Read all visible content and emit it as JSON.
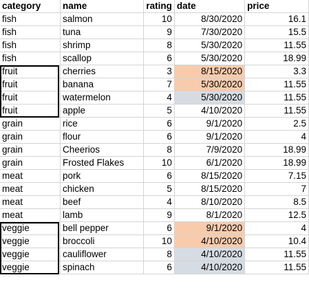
{
  "headers": [
    "category",
    "name",
    "rating",
    "date",
    "price"
  ],
  "rows": [
    {
      "category": "fish",
      "name": "salmon",
      "rating": "10",
      "date": "8/30/2020",
      "price": "16.1",
      "date_highlight": ""
    },
    {
      "category": "fish",
      "name": "tuna",
      "rating": "9",
      "date": "7/30/2020",
      "price": "15.5",
      "date_highlight": ""
    },
    {
      "category": "fish",
      "name": "shrimp",
      "rating": "8",
      "date": "5/30/2020",
      "price": "11.55",
      "date_highlight": ""
    },
    {
      "category": "fish",
      "name": "scallop",
      "rating": "6",
      "date": "5/30/2020",
      "price": "18.99",
      "date_highlight": ""
    },
    {
      "category": "fruit",
      "name": "cherries",
      "rating": "3",
      "date": "8/15/2020",
      "price": "3.3",
      "date_highlight": "orange"
    },
    {
      "category": "fruit",
      "name": "banana",
      "rating": "7",
      "date": "5/30/2020",
      "price": "11.55",
      "date_highlight": "orange"
    },
    {
      "category": "fruit",
      "name": "watermelon",
      "rating": "4",
      "date": "5/30/2020",
      "price": "11.55",
      "date_highlight": "blue"
    },
    {
      "category": "fruit",
      "name": "apple",
      "rating": "5",
      "date": "4/10/2020",
      "price": "11.55",
      "date_highlight": ""
    },
    {
      "category": "grain",
      "name": "rice",
      "rating": "6",
      "date": "9/1/2020",
      "price": "2.5",
      "date_highlight": ""
    },
    {
      "category": "grain",
      "name": "flour",
      "rating": "6",
      "date": "9/1/2020",
      "price": "4",
      "date_highlight": ""
    },
    {
      "category": "grain",
      "name": "Cheerios",
      "rating": "8",
      "date": "7/9/2020",
      "price": "18.99",
      "date_highlight": ""
    },
    {
      "category": "grain",
      "name": "Frosted Flakes",
      "rating": "10",
      "date": "6/1/2020",
      "price": "18.99",
      "date_highlight": ""
    },
    {
      "category": "meat",
      "name": "pork",
      "rating": "6",
      "date": "8/15/2020",
      "price": "7.15",
      "date_highlight": ""
    },
    {
      "category": "meat",
      "name": "chicken",
      "rating": "5",
      "date": "8/15/2020",
      "price": "7",
      "date_highlight": ""
    },
    {
      "category": "meat",
      "name": "beef",
      "rating": "4",
      "date": "8/10/2020",
      "price": "8.5",
      "date_highlight": ""
    },
    {
      "category": "meat",
      "name": "lamb",
      "rating": "9",
      "date": "8/1/2020",
      "price": "12.5",
      "date_highlight": ""
    },
    {
      "category": "veggie",
      "name": "bell pepper",
      "rating": "6",
      "date": "9/1/2020",
      "price": "4",
      "date_highlight": "orange"
    },
    {
      "category": "veggie",
      "name": "broccoli",
      "rating": "10",
      "date": "4/10/2020",
      "price": "10.4",
      "date_highlight": "orange"
    },
    {
      "category": "veggie",
      "name": "cauliflower",
      "rating": "8",
      "date": "4/10/2020",
      "price": "11.55",
      "date_highlight": "blue"
    },
    {
      "category": "veggie",
      "name": "spinach",
      "rating": "6",
      "date": "4/10/2020",
      "price": "11.55",
      "date_highlight": "blue"
    }
  ],
  "colors": {
    "orange_highlight": "#f8cbad",
    "blue_highlight": "#d6dce4",
    "gridline": "#d4d4d4"
  }
}
